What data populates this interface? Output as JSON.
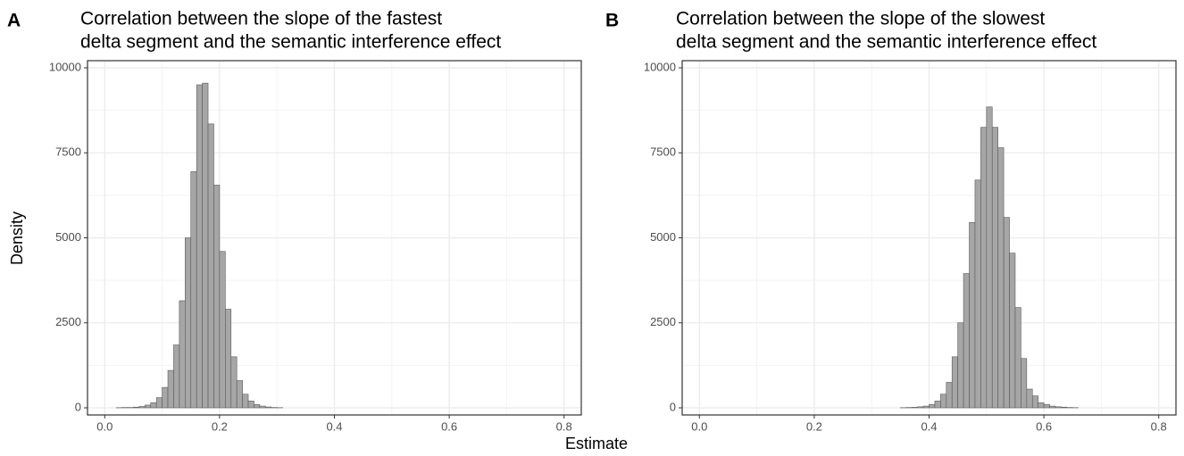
{
  "xlabel": "Estimate",
  "ylabel": "Density",
  "chart_data": [
    {
      "type": "histogram",
      "label": "A",
      "title": [
        "Correlation between the slope of the fastest",
        "delta segment and the semantic interference effect"
      ],
      "bins": [
        0,
        0.01,
        0.02,
        0.03,
        0.04,
        0.05,
        0.06,
        0.07,
        0.08,
        0.09,
        0.1,
        0.11,
        0.12,
        0.13,
        0.14,
        0.15,
        0.16,
        0.17,
        0.18,
        0.19,
        0.2,
        0.21,
        0.22,
        0.23,
        0.24,
        0.25,
        0.26,
        0.27,
        0.28,
        0.29,
        0.3,
        0.31,
        0.32,
        0.33,
        0.34,
        0.35,
        0.36,
        0.37,
        0.38,
        0.39,
        0.4,
        0.41,
        0.42,
        0.43,
        0.44,
        0.45,
        0.46,
        0.47,
        0.48,
        0.49,
        0.5,
        0.51,
        0.52,
        0.53,
        0.54,
        0.55,
        0.56,
        0.57,
        0.58,
        0.59,
        0.6,
        0.61,
        0.62,
        0.63,
        0.64,
        0.65,
        0.66,
        0.67,
        0.68,
        0.69,
        0.7,
        0.71,
        0.72,
        0.73,
        0.74,
        0.75,
        0.76,
        0.77,
        0.78,
        0.79,
        0.8
      ],
      "values": [
        0,
        0,
        5,
        10,
        10,
        20,
        40,
        80,
        150,
        300,
        600,
        1100,
        1850,
        3150,
        5000,
        6950,
        9500,
        9550,
        8350,
        6550,
        4600,
        2900,
        1500,
        800,
        400,
        200,
        100,
        50,
        25,
        10,
        5,
        0,
        0,
        0,
        0,
        0,
        0,
        0,
        0,
        0,
        0,
        0,
        0,
        0,
        0,
        0,
        0,
        0,
        0,
        0,
        0,
        0,
        0,
        0,
        0,
        0,
        0,
        0,
        0,
        0,
        0,
        0,
        0,
        0,
        0,
        0,
        0,
        0,
        0,
        0,
        0,
        0,
        0,
        0,
        0,
        0,
        0,
        0,
        0,
        0
      ],
      "color": "#a6a6a6",
      "edge_color": "#5a5a5a",
      "xlim": [
        -0.03,
        0.83
      ],
      "xticks": [
        {
          "value": 0,
          "label": "0.0"
        },
        0.2,
        0.4,
        0.6,
        0.8
      ],
      "ylim": [
        -210,
        10210
      ],
      "yticks": [
        0,
        2500,
        5000,
        7500,
        10000
      ],
      "grid": true
    },
    {
      "type": "histogram",
      "label": "B",
      "title": [
        "Correlation between the slope of the slowest",
        "delta segment and the semantic interference effect"
      ],
      "bins": [
        0,
        0.01,
        0.02,
        0.03,
        0.04,
        0.05,
        0.06,
        0.07,
        0.08,
        0.09,
        0.1,
        0.11,
        0.12,
        0.13,
        0.14,
        0.15,
        0.16,
        0.17,
        0.18,
        0.19,
        0.2,
        0.21,
        0.22,
        0.23,
        0.24,
        0.25,
        0.26,
        0.27,
        0.28,
        0.29,
        0.3,
        0.31,
        0.32,
        0.33,
        0.34,
        0.35,
        0.36,
        0.37,
        0.38,
        0.39,
        0.4,
        0.41,
        0.42,
        0.43,
        0.44,
        0.45,
        0.46,
        0.47,
        0.48,
        0.49,
        0.5,
        0.51,
        0.52,
        0.53,
        0.54,
        0.55,
        0.56,
        0.57,
        0.58,
        0.59,
        0.6,
        0.61,
        0.62,
        0.63,
        0.64,
        0.65,
        0.66,
        0.67,
        0.68,
        0.69,
        0.7,
        0.71,
        0.72,
        0.73,
        0.74,
        0.75,
        0.76,
        0.77,
        0.78,
        0.79,
        0.8
      ],
      "values": [
        0,
        0,
        0,
        0,
        0,
        0,
        0,
        0,
        0,
        0,
        0,
        0,
        0,
        0,
        0,
        0,
        0,
        0,
        0,
        0,
        0,
        0,
        0,
        0,
        0,
        0,
        0,
        0,
        0,
        0,
        0,
        0,
        0,
        0,
        0,
        5,
        10,
        15,
        30,
        50,
        100,
        200,
        400,
        750,
        1500,
        2500,
        3950,
        5450,
        6700,
        8250,
        8850,
        8250,
        7650,
        5600,
        4550,
        2950,
        1450,
        550,
        350,
        150,
        100,
        50,
        30,
        20,
        10,
        5,
        0,
        0,
        0,
        0,
        0,
        0,
        0,
        0,
        0,
        0,
        0,
        0,
        0,
        0
      ],
      "color": "#a6a6a6",
      "edge_color": "#5a5a5a",
      "xlim": [
        -0.03,
        0.83
      ],
      "xticks": [
        {
          "value": 0,
          "label": "0.0"
        },
        0.2,
        0.4,
        0.6,
        0.8
      ],
      "ylim": [
        -210,
        10210
      ],
      "yticks": [
        0,
        2500,
        5000,
        7500,
        10000
      ],
      "grid": true
    }
  ]
}
